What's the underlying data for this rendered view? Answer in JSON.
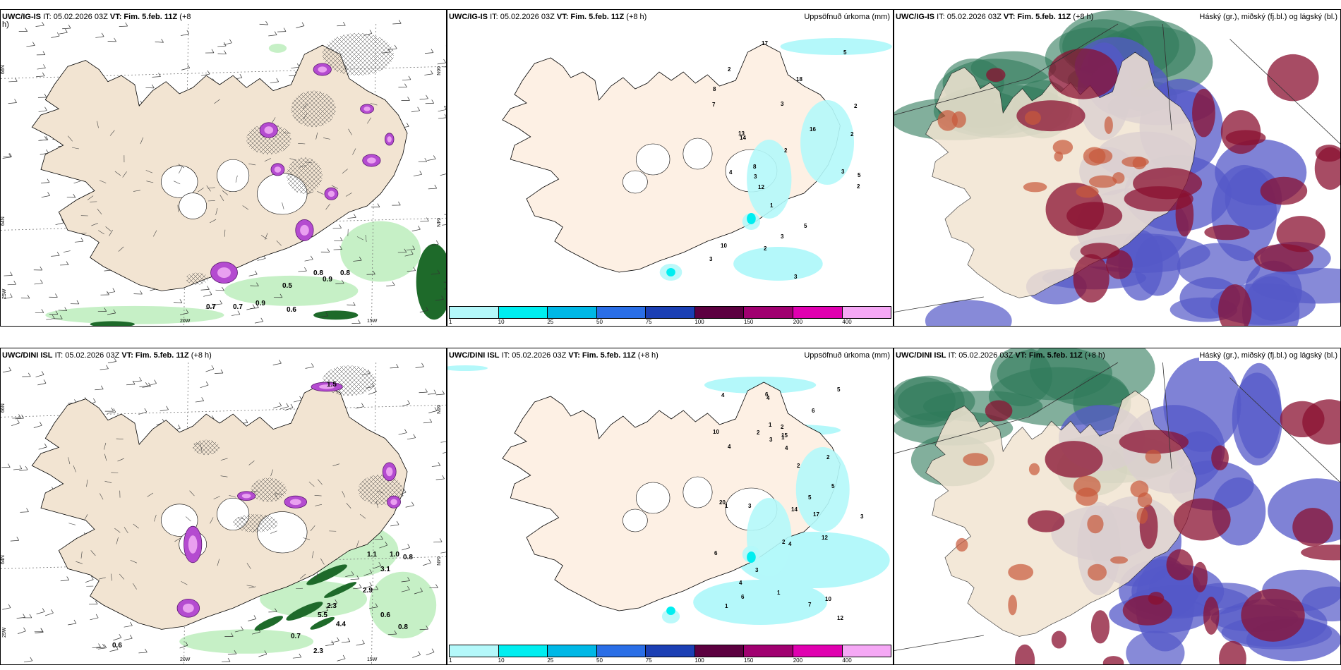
{
  "panels": [
    {
      "id": "top-left",
      "model": "UWC/IG-IS",
      "init": "IT: 05.02.2026 03Z",
      "vt_label": "VT: Fim. 5.feb. 11Z",
      "lead": "(+8",
      "lead_cont": "h)",
      "right_title": "",
      "lat_labels": [
        "66N",
        "64N"
      ],
      "lon_labels": [
        "20W",
        "15W",
        "25W"
      ],
      "values": [
        "0.8",
        "0.9",
        "0.8",
        "0.5",
        "0.7",
        "0.7",
        "0.9",
        "0.6"
      ]
    },
    {
      "id": "top-middle",
      "model": "UWC/IG-IS",
      "init": "IT: 05.02.2026 03Z",
      "vt_label": "VT: Fim. 5.feb. 11Z",
      "lead": "(+8 h)",
      "right_title": "Uppsöfnuð úrkoma (mm)",
      "values": [
        "1",
        "3",
        "3",
        "3",
        "4",
        "8",
        "13",
        "10",
        "2",
        "2",
        "3",
        "2",
        "2",
        "5",
        "14",
        "16",
        "5",
        "2",
        "17",
        "3",
        "12",
        "2",
        "3",
        "8",
        "7",
        "18",
        "5"
      ]
    },
    {
      "id": "top-right",
      "model": "UWC/IG-IS",
      "init": "IT: 05.02.2026 03Z",
      "vt_label": "VT: Fim. 5.feb. 11Z",
      "lead": "(+8 h)",
      "right_title": "Háský (gr.), miðský (fj.bl.) og lágský (bl.)"
    },
    {
      "id": "bottom-left",
      "model": "UWC/DINI ISL",
      "init": "IT: 05.02.2026 03Z",
      "vt_label": "VT: Fim. 5.feb. 11Z",
      "lead": "(+8 h)",
      "right_title": "",
      "lat_labels": [
        "66N",
        "64N"
      ],
      "lon_labels": [
        "20W",
        "15W",
        "25W"
      ],
      "values": [
        "1.5",
        "1.1",
        "1.0",
        "0.8",
        "2.9",
        "3.1",
        "2.3",
        "5.5",
        "4.4",
        "0.6",
        "0.8",
        "0.7",
        "2.3",
        "0.6"
      ]
    },
    {
      "id": "bottom-middle",
      "model": "UWC/DINI ISL",
      "init": "IT: 05.02.2026 03Z",
      "vt_label": "VT: Fim. 5.feb. 11Z",
      "lead": "(+8 h)",
      "right_title": "Uppsöfnuð úrkoma (mm)",
      "values": [
        "1",
        "1",
        "4",
        "1",
        "2",
        "3",
        "6",
        "17",
        "20",
        "10",
        "15",
        "12",
        "3",
        "2",
        "2",
        "1",
        "10",
        "7",
        "2",
        "2",
        "6",
        "3",
        "1",
        "4",
        "5",
        "3",
        "4",
        "5",
        "4",
        "5",
        "6",
        "6",
        "4",
        "12",
        "4",
        "14"
      ]
    },
    {
      "id": "bottom-right",
      "model": "UWC/DINI ISL",
      "init": "IT: 05.02.2026 03Z",
      "vt_label": "VT: Fim. 5.feb. 11Z",
      "lead": "(+8 h)",
      "right_title": "Háský (gr.), miðský (fj.bl.) og lágský (bl.)"
    }
  ],
  "precip_legend": {
    "colors": [
      "#b4f8fa",
      "#00eef0",
      "#00b8e6",
      "#2a6ee6",
      "#1b3fb4",
      "#5c0040",
      "#a00070",
      "#e000b0",
      "#f5a8f5"
    ],
    "ticks": [
      "1",
      "10",
      "25",
      "50",
      "75",
      "100",
      "150",
      "200",
      "400"
    ]
  },
  "colors": {
    "land": "#f2e4d2",
    "land_light": "#fdf0e4",
    "precip_light": "#b4f8fa",
    "precip_mid": "#00eef0",
    "magenta": "#b44bd0",
    "green_light": "#c6f0c6",
    "green_dark": "#1e6a2a",
    "cloud_high": "#2e7a5a",
    "cloud_mid": "#5458c8",
    "cloud_low": "#8a1030"
  }
}
